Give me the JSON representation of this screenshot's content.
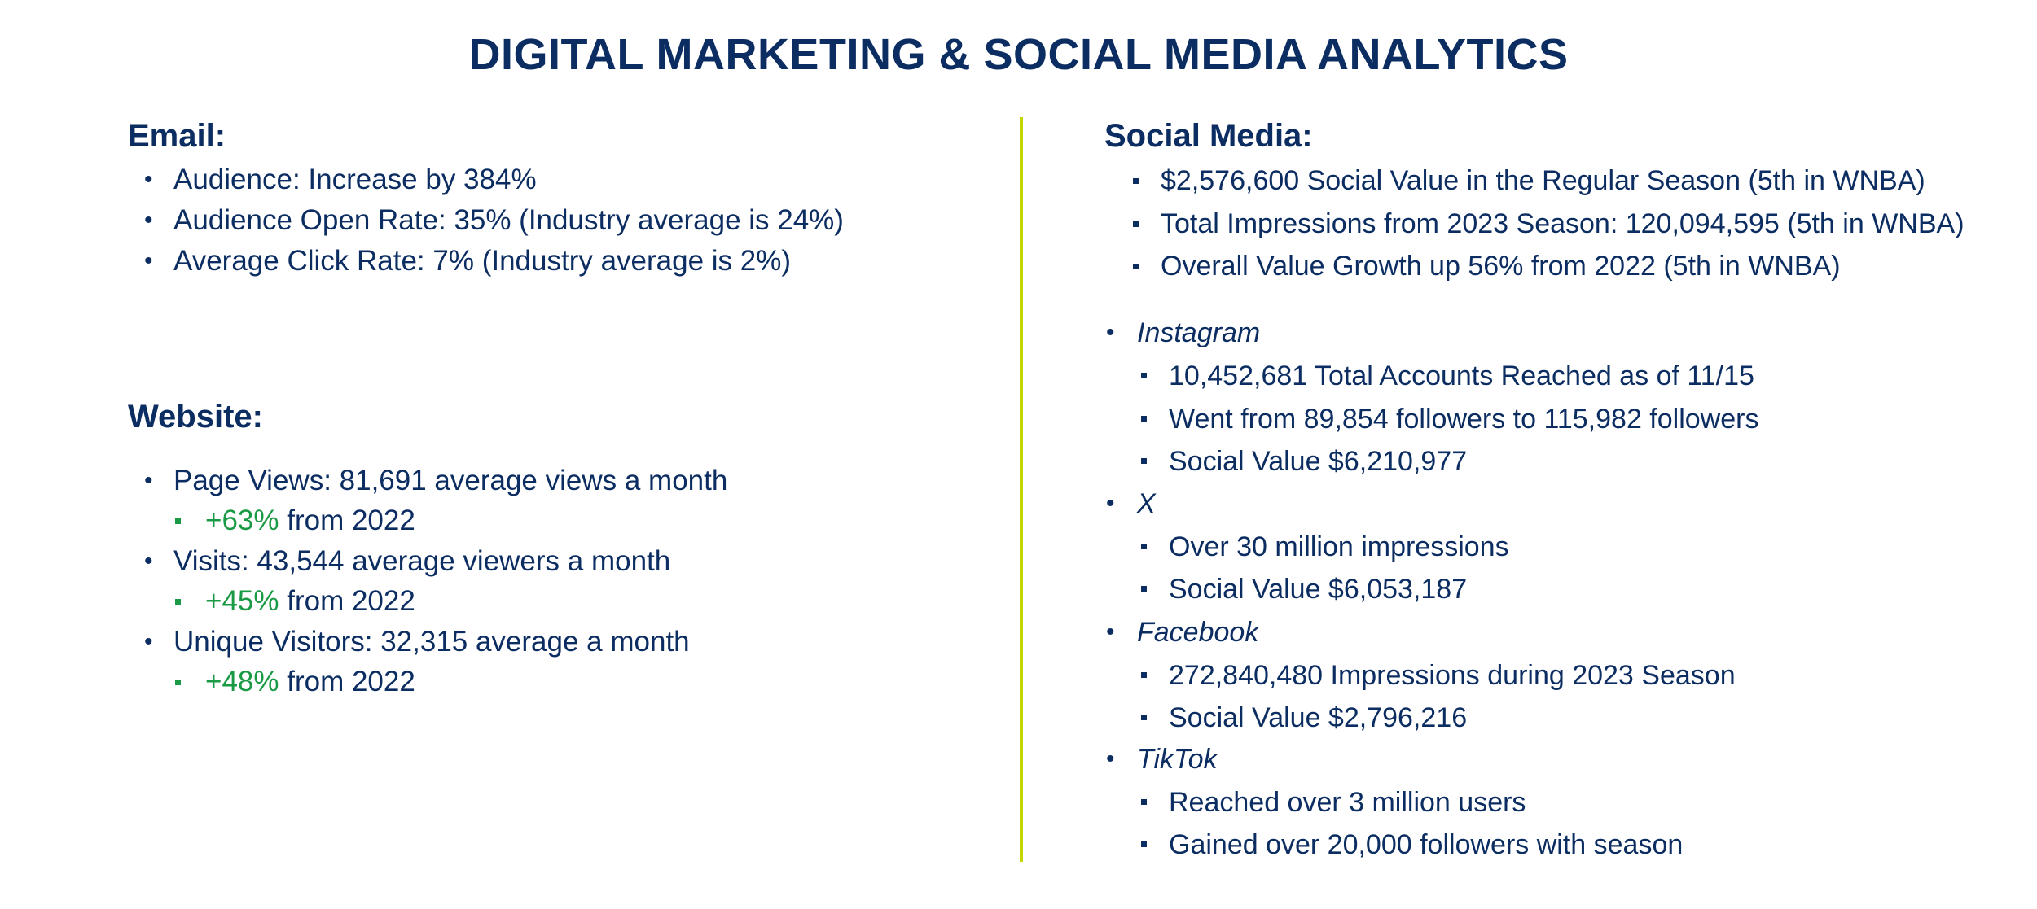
{
  "title": "DIGITAL MARKETING & SOCIAL MEDIA ANALYTICS",
  "colors": {
    "text": "#0c2d62",
    "accent_green": "#1a9a45",
    "divider": "#c4d600"
  },
  "email": {
    "heading": "Email:",
    "items": [
      "Audience: Increase by 384%",
      "Audience Open Rate: 35% (Industry average is 24%)",
      "Average Click Rate: 7% (Industry average is 2%)"
    ]
  },
  "website": {
    "heading": "Website:",
    "items": [
      {
        "label": "Page Views: 81,691 average views a month",
        "change": "+63%",
        "change_suffix": " from 2022"
      },
      {
        "label": "Visits: 43,544 average viewers a month",
        "change": "+45%",
        "change_suffix": " from 2022"
      },
      {
        "label": "Unique Visitors: 32,315 average a month",
        "change": "+48%",
        "change_suffix": " from 2022"
      }
    ]
  },
  "social": {
    "heading": "Social Media:",
    "summary": [
      "$2,576,600 Social Value in the Regular Season (5th in WNBA)",
      "Total Impressions from 2023 Season: 120,094,595 (5th in WNBA)",
      "Overall Value Growth up 56% from 2022 (5th in WNBA)"
    ],
    "platforms": [
      {
        "name": "Instagram",
        "items": [
          "10,452,681 Total Accounts Reached as of 11/15",
          "Went from 89,854 followers to 115,982 followers",
          "Social Value $6,210,977"
        ]
      },
      {
        "name": "X",
        "items": [
          "Over 30 million impressions",
          "Social Value $6,053,187"
        ]
      },
      {
        "name": "Facebook",
        "items": [
          "272,840,480 Impressions during 2023 Season",
          "Social Value $2,796,216"
        ]
      },
      {
        "name": "TikTok",
        "items": [
          "Reached over 3 million users",
          "Gained over 20,000 followers with season"
        ]
      }
    ]
  }
}
